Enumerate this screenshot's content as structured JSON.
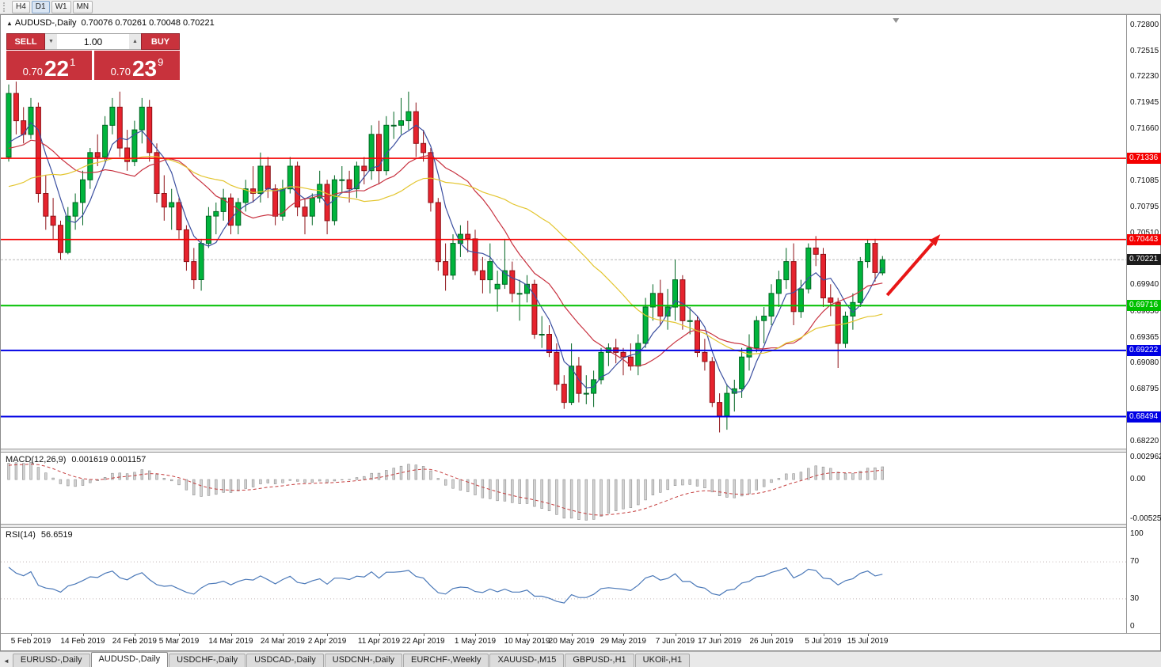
{
  "toolbar": {
    "buttons": [
      "H4",
      "D1",
      "W1",
      "MN"
    ],
    "active": "D1"
  },
  "chart": {
    "title": "AUDUSD-,Daily",
    "ohlc": "0.70076 0.70261 0.70048 0.70221"
  },
  "one_click": {
    "collapse_icon": "▲",
    "sell_label": "SELL",
    "buy_label": "BUY",
    "volume": "1.00",
    "volume_down_icon": "▼",
    "volume_up_icon": "▲",
    "sell_price_prefix": "0.70",
    "sell_price_big": "22",
    "sell_price_sup": "1",
    "buy_price_prefix": "0.70",
    "buy_price_big": "23",
    "buy_price_sup": "9"
  },
  "chart_data": {
    "type": "candlestick",
    "symbol": "AUDUSD-",
    "timeframe": "Daily",
    "ylim": [
      0.6822,
      0.728
    ],
    "y_ticks": [
      "0.72800",
      "0.72515",
      "0.72230",
      "0.71945",
      "0.71660",
      "0.71085",
      "0.70795",
      "0.70510",
      "0.69940",
      "0.69650",
      "0.69365",
      "0.69080",
      "0.68795",
      "0.68220"
    ],
    "current_price": {
      "label": "0.70221",
      "value": 0.70221,
      "badge_bg": "#1c1c1c"
    },
    "hlines": [
      {
        "label": "0.71336",
        "price": 0.71336,
        "color": "#f40000",
        "width": 1.6
      },
      {
        "label": "0.70443",
        "price": 0.70443,
        "color": "#f40000",
        "width": 1.6
      },
      {
        "label": "0.69716",
        "price": 0.69716,
        "color": "#00c000",
        "width": 2
      },
      {
        "label": "0.69222",
        "price": 0.69222,
        "color": "#0000e4",
        "width": 2
      },
      {
        "label": "0.68494",
        "price": 0.68494,
        "color": "#0000e4",
        "width": 2
      }
    ],
    "moving_averages": [
      {
        "period": 5,
        "color": "#3b4fa0"
      },
      {
        "period": 14,
        "color": "#c83240"
      },
      {
        "period": 30,
        "color": "#e3c52e"
      }
    ],
    "trend_arrow": {
      "from_price": 0.6983,
      "to_price": 0.705,
      "color": "#e81616"
    },
    "colors": {
      "bull": "#00b43c",
      "bull_border": "#006622",
      "bear": "#e6232e",
      "bear_border": "#8e1016",
      "macd_bar": "#d2d2d2",
      "macd_bar_border": "#8f8f8f",
      "macd_signal": "#c43c3c",
      "rsi_line": "#4a78b8"
    },
    "warmup_closes": [
      0.708,
      0.706,
      0.709,
      0.711,
      0.7125,
      0.7115,
      0.7085,
      0.7055,
      0.704,
      0.702,
      0.7035,
      0.705,
      0.7025,
      0.7,
      0.6985,
      0.704,
      0.7085,
      0.7105,
      0.712,
      0.714,
      0.7155,
      0.715,
      0.713,
      0.712,
      0.711,
      0.7135,
      0.715,
      0.714,
      0.716,
      0.7175,
      0.715,
      0.714,
      0.7125,
      0.7135
    ],
    "candles": [
      [
        0.7135,
        0.7215,
        0.713,
        0.7205
      ],
      [
        0.7205,
        0.7218,
        0.716,
        0.7175
      ],
      [
        0.7175,
        0.719,
        0.715,
        0.716
      ],
      [
        0.716,
        0.72,
        0.7155,
        0.719
      ],
      [
        0.719,
        0.7195,
        0.7085,
        0.7095
      ],
      [
        0.7095,
        0.7115,
        0.7055,
        0.707
      ],
      [
        0.707,
        0.709,
        0.7045,
        0.706
      ],
      [
        0.706,
        0.7065,
        0.7022,
        0.703
      ],
      [
        0.703,
        0.708,
        0.7028,
        0.707
      ],
      [
        0.707,
        0.7095,
        0.7055,
        0.7085
      ],
      [
        0.7085,
        0.712,
        0.706,
        0.711
      ],
      [
        0.711,
        0.7145,
        0.71,
        0.714
      ],
      [
        0.714,
        0.716,
        0.7125,
        0.7135
      ],
      [
        0.7135,
        0.718,
        0.713,
        0.717
      ],
      [
        0.717,
        0.72,
        0.716,
        0.719
      ],
      [
        0.719,
        0.7207,
        0.7135,
        0.7145
      ],
      [
        0.7145,
        0.7165,
        0.712,
        0.713
      ],
      [
        0.713,
        0.7175,
        0.7125,
        0.7165
      ],
      [
        0.7165,
        0.72,
        0.715,
        0.719
      ],
      [
        0.719,
        0.7198,
        0.713,
        0.714
      ],
      [
        0.714,
        0.715,
        0.7085,
        0.7095
      ],
      [
        0.7095,
        0.7115,
        0.7065,
        0.708
      ],
      [
        0.708,
        0.71,
        0.7055,
        0.7085
      ],
      [
        0.7085,
        0.709,
        0.7045,
        0.7055
      ],
      [
        0.7055,
        0.706,
        0.701,
        0.702
      ],
      [
        0.702,
        0.7035,
        0.699,
        0.7
      ],
      [
        0.7,
        0.7045,
        0.6988,
        0.704
      ],
      [
        0.704,
        0.708,
        0.7035,
        0.707
      ],
      [
        0.707,
        0.7085,
        0.705,
        0.7075
      ],
      [
        0.7075,
        0.71,
        0.7065,
        0.709
      ],
      [
        0.709,
        0.7095,
        0.705,
        0.706
      ],
      [
        0.706,
        0.709,
        0.705,
        0.7085
      ],
      [
        0.7085,
        0.711,
        0.7075,
        0.71
      ],
      [
        0.71,
        0.7125,
        0.7085,
        0.7095
      ],
      [
        0.7095,
        0.714,
        0.7085,
        0.7125
      ],
      [
        0.7125,
        0.7135,
        0.709,
        0.71
      ],
      [
        0.71,
        0.7105,
        0.706,
        0.707
      ],
      [
        0.707,
        0.711,
        0.7065,
        0.71
      ],
      [
        0.71,
        0.7135,
        0.7095,
        0.7125
      ],
      [
        0.7125,
        0.713,
        0.707,
        0.708
      ],
      [
        0.708,
        0.709,
        0.705,
        0.707
      ],
      [
        0.707,
        0.7095,
        0.706,
        0.709
      ],
      [
        0.709,
        0.712,
        0.7085,
        0.7105
      ],
      [
        0.7105,
        0.711,
        0.705,
        0.7065
      ],
      [
        0.7065,
        0.7115,
        0.706,
        0.711
      ],
      [
        0.711,
        0.7125,
        0.7095,
        0.711
      ],
      [
        0.711,
        0.712,
        0.7085,
        0.71
      ],
      [
        0.71,
        0.713,
        0.709,
        0.7125
      ],
      [
        0.7125,
        0.7135,
        0.7105,
        0.712
      ],
      [
        0.712,
        0.717,
        0.711,
        0.716
      ],
      [
        0.716,
        0.7175,
        0.7105,
        0.712
      ],
      [
        0.712,
        0.718,
        0.7115,
        0.717
      ],
      [
        0.717,
        0.7185,
        0.7155,
        0.717
      ],
      [
        0.717,
        0.72,
        0.716,
        0.7175
      ],
      [
        0.7175,
        0.7207,
        0.7165,
        0.7185
      ],
      [
        0.7185,
        0.7195,
        0.7135,
        0.715
      ],
      [
        0.715,
        0.7165,
        0.713,
        0.714
      ],
      [
        0.714,
        0.7145,
        0.7075,
        0.7085
      ],
      [
        0.7085,
        0.709,
        0.701,
        0.702
      ],
      [
        0.702,
        0.704,
        0.6988,
        0.7005
      ],
      [
        0.7005,
        0.705,
        0.7,
        0.704
      ],
      [
        0.704,
        0.706,
        0.7025,
        0.705
      ],
      [
        0.705,
        0.7065,
        0.703,
        0.7045
      ],
      [
        0.7045,
        0.7055,
        0.7005,
        0.701
      ],
      [
        0.701,
        0.7025,
        0.6985,
        0.7
      ],
      [
        0.7,
        0.704,
        0.6985,
        0.702
      ],
      [
        0.699,
        0.701,
        0.6965,
        0.6995
      ],
      [
        0.6995,
        0.7045,
        0.699,
        0.701
      ],
      [
        0.701,
        0.702,
        0.6975,
        0.6985
      ],
      [
        0.6985,
        0.7,
        0.6955,
        0.6985
      ],
      [
        0.6985,
        0.7005,
        0.6975,
        0.6995
      ],
      [
        0.6995,
        0.7,
        0.6935,
        0.694
      ],
      [
        0.694,
        0.696,
        0.6925,
        0.694
      ],
      [
        0.694,
        0.695,
        0.6915,
        0.692
      ],
      [
        0.692,
        0.693,
        0.6878,
        0.6885
      ],
      [
        0.6885,
        0.6895,
        0.6858,
        0.6865
      ],
      [
        0.6865,
        0.693,
        0.6862,
        0.6905
      ],
      [
        0.6905,
        0.6915,
        0.6865,
        0.6875
      ],
      [
        0.6875,
        0.6895,
        0.6863,
        0.6875
      ],
      [
        0.6875,
        0.69,
        0.686,
        0.689
      ],
      [
        0.689,
        0.6925,
        0.6885,
        0.692
      ],
      [
        0.692,
        0.693,
        0.6905,
        0.6925
      ],
      [
        0.6925,
        0.6935,
        0.6908,
        0.692
      ],
      [
        0.692,
        0.6925,
        0.6895,
        0.6915
      ],
      [
        0.6915,
        0.693,
        0.69,
        0.6905
      ],
      [
        0.6905,
        0.694,
        0.6895,
        0.693
      ],
      [
        0.693,
        0.698,
        0.6925,
        0.697
      ],
      [
        0.697,
        0.6995,
        0.6955,
        0.6985
      ],
      [
        0.6985,
        0.7,
        0.695,
        0.696
      ],
      [
        0.696,
        0.699,
        0.6945,
        0.697
      ],
      [
        0.697,
        0.7022,
        0.6955,
        0.7
      ],
      [
        0.7,
        0.7005,
        0.6945,
        0.6955
      ],
      [
        0.6955,
        0.697,
        0.694,
        0.6955
      ],
      [
        0.6955,
        0.696,
        0.6915,
        0.692
      ],
      [
        0.692,
        0.6935,
        0.69,
        0.691
      ],
      [
        0.691,
        0.6915,
        0.686,
        0.6865
      ],
      [
        0.6865,
        0.6875,
        0.6832,
        0.685
      ],
      [
        0.685,
        0.6885,
        0.6835,
        0.6875
      ],
      [
        0.6875,
        0.689,
        0.6855,
        0.688
      ],
      [
        0.688,
        0.6925,
        0.687,
        0.6915
      ],
      [
        0.6915,
        0.694,
        0.69,
        0.6925
      ],
      [
        0.6925,
        0.696,
        0.692,
        0.6955
      ],
      [
        0.6955,
        0.697,
        0.693,
        0.696
      ],
      [
        0.696,
        0.6995,
        0.695,
        0.6985
      ],
      [
        0.6985,
        0.701,
        0.697,
        0.7
      ],
      [
        0.7,
        0.7035,
        0.699,
        0.702
      ],
      [
        0.702,
        0.704,
        0.695,
        0.6965
      ],
      [
        0.6965,
        0.7,
        0.6958,
        0.699
      ],
      [
        0.699,
        0.704,
        0.6985,
        0.7035
      ],
      [
        0.7035,
        0.7048,
        0.7015,
        0.7028
      ],
      [
        0.7028,
        0.7035,
        0.697,
        0.698
      ],
      [
        0.698,
        0.6995,
        0.696,
        0.6975
      ],
      [
        0.6975,
        0.698,
        0.6903,
        0.693
      ],
      [
        0.693,
        0.6965,
        0.6925,
        0.696
      ],
      [
        0.696,
        0.6985,
        0.6945,
        0.6975
      ],
      [
        0.6975,
        0.7025,
        0.697,
        0.702
      ],
      [
        0.702,
        0.70443,
        0.7013,
        0.704
      ],
      [
        0.704,
        0.7045,
        0.6998,
        0.7008
      ],
      [
        0.70076,
        0.70261,
        0.70048,
        0.70221
      ]
    ],
    "date_labels": [
      {
        "text": "5 Feb 2019",
        "index": 3
      },
      {
        "text": "14 Feb 2019",
        "index": 10
      },
      {
        "text": "24 Feb 2019",
        "index": 17
      },
      {
        "text": "5 Mar 2019",
        "index": 23
      },
      {
        "text": "14 Mar 2019",
        "index": 30
      },
      {
        "text": "24 Mar 2019",
        "index": 37
      },
      {
        "text": "2 Apr 2019",
        "index": 43
      },
      {
        "text": "11 Apr 2019",
        "index": 50
      },
      {
        "text": "22 Apr 2019",
        "index": 56
      },
      {
        "text": "1 May 2019",
        "index": 63
      },
      {
        "text": "10 May 2019",
        "index": 70
      },
      {
        "text": "20 May 2019",
        "index": 76
      },
      {
        "text": "29 May 2019",
        "index": 83
      },
      {
        "text": "7 Jun 2019",
        "index": 90
      },
      {
        "text": "17 Jun 2019",
        "index": 96
      },
      {
        "text": "26 Jun 2019",
        "index": 103
      },
      {
        "text": "5 Jul 2019",
        "index": 110
      },
      {
        "text": "15 Jul 2019",
        "index": 116
      }
    ],
    "indicators": {
      "macd": {
        "label": "MACD(12,26,9)",
        "values_label": "0.001619 0.001157",
        "params": [
          12,
          26,
          9
        ],
        "scale": {
          "max": 0.002962,
          "min": -0.005255,
          "ticks": [
            {
              "text": "0.002962",
              "value": 0.002962
            },
            {
              "text": "0.00",
              "value": 0
            },
            {
              "text": "-0.005255",
              "value": -0.005255
            }
          ]
        }
      },
      "rsi": {
        "label": "RSI(14)",
        "value_label": "56.6519",
        "period": 14,
        "levels": [
          70,
          30
        ],
        "ticks": [
          {
            "text": "100",
            "value": 100
          },
          {
            "text": "70",
            "value": 70
          },
          {
            "text": "30",
            "value": 30
          },
          {
            "text": "0",
            "value": 0
          }
        ]
      }
    }
  },
  "bottom_tabs": {
    "scroll_icon": "◄",
    "active": "AUDUSD-,Daily",
    "items": [
      "EURUSD-,Daily",
      "AUDUSD-,Daily",
      "USDCHF-,Daily",
      "USDCAD-,Daily",
      "USDCNH-,Daily",
      "EURCHF-,Weekly",
      "XAUUSD-,M15",
      "GBPUSD-,H1",
      "UKOil-,H1"
    ]
  }
}
